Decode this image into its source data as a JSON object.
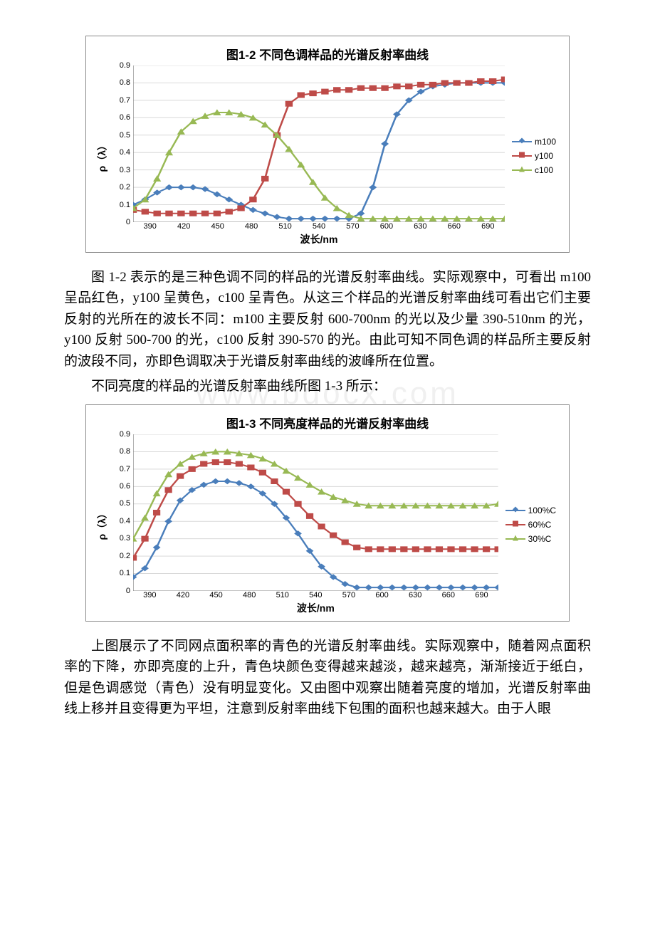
{
  "watermark": "www.bdocx.com",
  "chart1": {
    "title": "图1-2 不同色调样品的光谱反射率曲线",
    "ylabel": "ρ（λ）",
    "xlabel": "波长/nm",
    "ylim": [
      0,
      0.9
    ],
    "ytick_step": 0.1,
    "x_ticks": [
      390,
      420,
      450,
      480,
      510,
      540,
      570,
      600,
      630,
      660,
      690
    ],
    "x_values": [
      390,
      400,
      410,
      420,
      430,
      440,
      450,
      460,
      470,
      480,
      490,
      500,
      510,
      520,
      530,
      540,
      550,
      560,
      570,
      580,
      590,
      600,
      610,
      620,
      630,
      640,
      650,
      660,
      670,
      680,
      690,
      700
    ],
    "grid_color": "#d9d9d9",
    "axis_color": "#888888",
    "background": "#ffffff",
    "title_fontsize": 17,
    "label_fontsize": 14,
    "tick_fontsize": 11,
    "line_width": 2,
    "marker_size": 5,
    "series": [
      {
        "name": "m100",
        "color": "#4a7ebb",
        "marker": "diamond",
        "y": [
          0.1,
          0.13,
          0.17,
          0.2,
          0.2,
          0.2,
          0.19,
          0.16,
          0.13,
          0.1,
          0.07,
          0.05,
          0.03,
          0.02,
          0.02,
          0.02,
          0.02,
          0.02,
          0.02,
          0.05,
          0.2,
          0.45,
          0.62,
          0.7,
          0.75,
          0.78,
          0.79,
          0.8,
          0.8,
          0.8,
          0.8,
          0.8
        ]
      },
      {
        "name": "y100",
        "color": "#be4b48",
        "marker": "square",
        "y": [
          0.07,
          0.06,
          0.05,
          0.05,
          0.05,
          0.05,
          0.05,
          0.05,
          0.06,
          0.08,
          0.13,
          0.25,
          0.5,
          0.68,
          0.73,
          0.74,
          0.75,
          0.76,
          0.76,
          0.77,
          0.77,
          0.77,
          0.78,
          0.78,
          0.79,
          0.79,
          0.8,
          0.8,
          0.8,
          0.81,
          0.81,
          0.82
        ]
      },
      {
        "name": "c100",
        "color": "#98b954",
        "marker": "triangle",
        "y": [
          0.08,
          0.13,
          0.25,
          0.4,
          0.52,
          0.58,
          0.61,
          0.63,
          0.63,
          0.62,
          0.6,
          0.56,
          0.5,
          0.42,
          0.33,
          0.23,
          0.14,
          0.08,
          0.04,
          0.02,
          0.02,
          0.02,
          0.02,
          0.02,
          0.02,
          0.02,
          0.02,
          0.02,
          0.02,
          0.02,
          0.02,
          0.02
        ]
      }
    ]
  },
  "para1": "图 1-2 表示的是三种色调不同的样品的光谱反射率曲线。实际观察中，可看出 m100 呈品红色，y100 呈黄色，c100 呈青色。从这三个样品的光谱反射率曲线可看出它们主要反射的光所在的波长不同：m100 主要反射 600-700nm 的光以及少量 390-510nm 的光，y100 反射 500-700 的光，c100 反射 390-570 的光。由此可知不同色调的样品所主要反射的波段不同，亦即色调取决于光谱反射率曲线的波峰所在位置。",
  "para2": "不同亮度的样品的光谱反射率曲线所图 1-3 所示：",
  "chart2": {
    "title": "图1-3 不同亮度样品的光谱反射率曲线",
    "ylabel": "ρ（λ）",
    "xlabel": "波长/nm",
    "ylim": [
      0,
      0.9
    ],
    "ytick_step": 0.1,
    "x_ticks": [
      390,
      420,
      450,
      480,
      510,
      540,
      570,
      600,
      630,
      660,
      690
    ],
    "x_values": [
      390,
      400,
      410,
      420,
      430,
      440,
      450,
      460,
      470,
      480,
      490,
      500,
      510,
      520,
      530,
      540,
      550,
      560,
      570,
      580,
      590,
      600,
      610,
      620,
      630,
      640,
      650,
      660,
      670,
      680,
      690,
      700
    ],
    "grid_color": "#d9d9d9",
    "axis_color": "#888888",
    "background": "#ffffff",
    "title_fontsize": 17,
    "label_fontsize": 14,
    "tick_fontsize": 11,
    "line_width": 2,
    "marker_size": 5,
    "series": [
      {
        "name": "100%C",
        "color": "#4a7ebb",
        "marker": "diamond",
        "y": [
          0.08,
          0.13,
          0.25,
          0.4,
          0.52,
          0.58,
          0.61,
          0.63,
          0.63,
          0.62,
          0.6,
          0.56,
          0.5,
          0.42,
          0.33,
          0.23,
          0.14,
          0.08,
          0.04,
          0.02,
          0.02,
          0.02,
          0.02,
          0.02,
          0.02,
          0.02,
          0.02,
          0.02,
          0.02,
          0.02,
          0.02,
          0.02
        ]
      },
      {
        "name": "60%C",
        "color": "#be4b48",
        "marker": "square",
        "y": [
          0.19,
          0.3,
          0.45,
          0.58,
          0.66,
          0.7,
          0.73,
          0.74,
          0.74,
          0.73,
          0.71,
          0.68,
          0.63,
          0.57,
          0.5,
          0.43,
          0.37,
          0.32,
          0.28,
          0.25,
          0.24,
          0.24,
          0.24,
          0.24,
          0.24,
          0.24,
          0.24,
          0.24,
          0.24,
          0.24,
          0.24,
          0.24
        ]
      },
      {
        "name": "30%C",
        "color": "#98b954",
        "marker": "triangle",
        "y": [
          0.3,
          0.42,
          0.56,
          0.67,
          0.73,
          0.77,
          0.79,
          0.8,
          0.8,
          0.79,
          0.78,
          0.76,
          0.73,
          0.69,
          0.65,
          0.61,
          0.57,
          0.54,
          0.52,
          0.5,
          0.49,
          0.49,
          0.49,
          0.49,
          0.49,
          0.49,
          0.49,
          0.49,
          0.49,
          0.49,
          0.49,
          0.5
        ]
      }
    ]
  },
  "para3": "上图展示了不同网点面积率的青色的光谱反射率曲线。实际观察中，随着网点面积率的下降，亦即亮度的上升，青色块颜色变得越来越淡，越来越亮，渐渐接近于纸白，但是色调感觉（青色）没有明显变化。又由图中观察出随着亮度的增加，光谱反射率曲线上移并且变得更为平坦，注意到反射率曲线下包围的面积也越来越大。由于人眼"
}
